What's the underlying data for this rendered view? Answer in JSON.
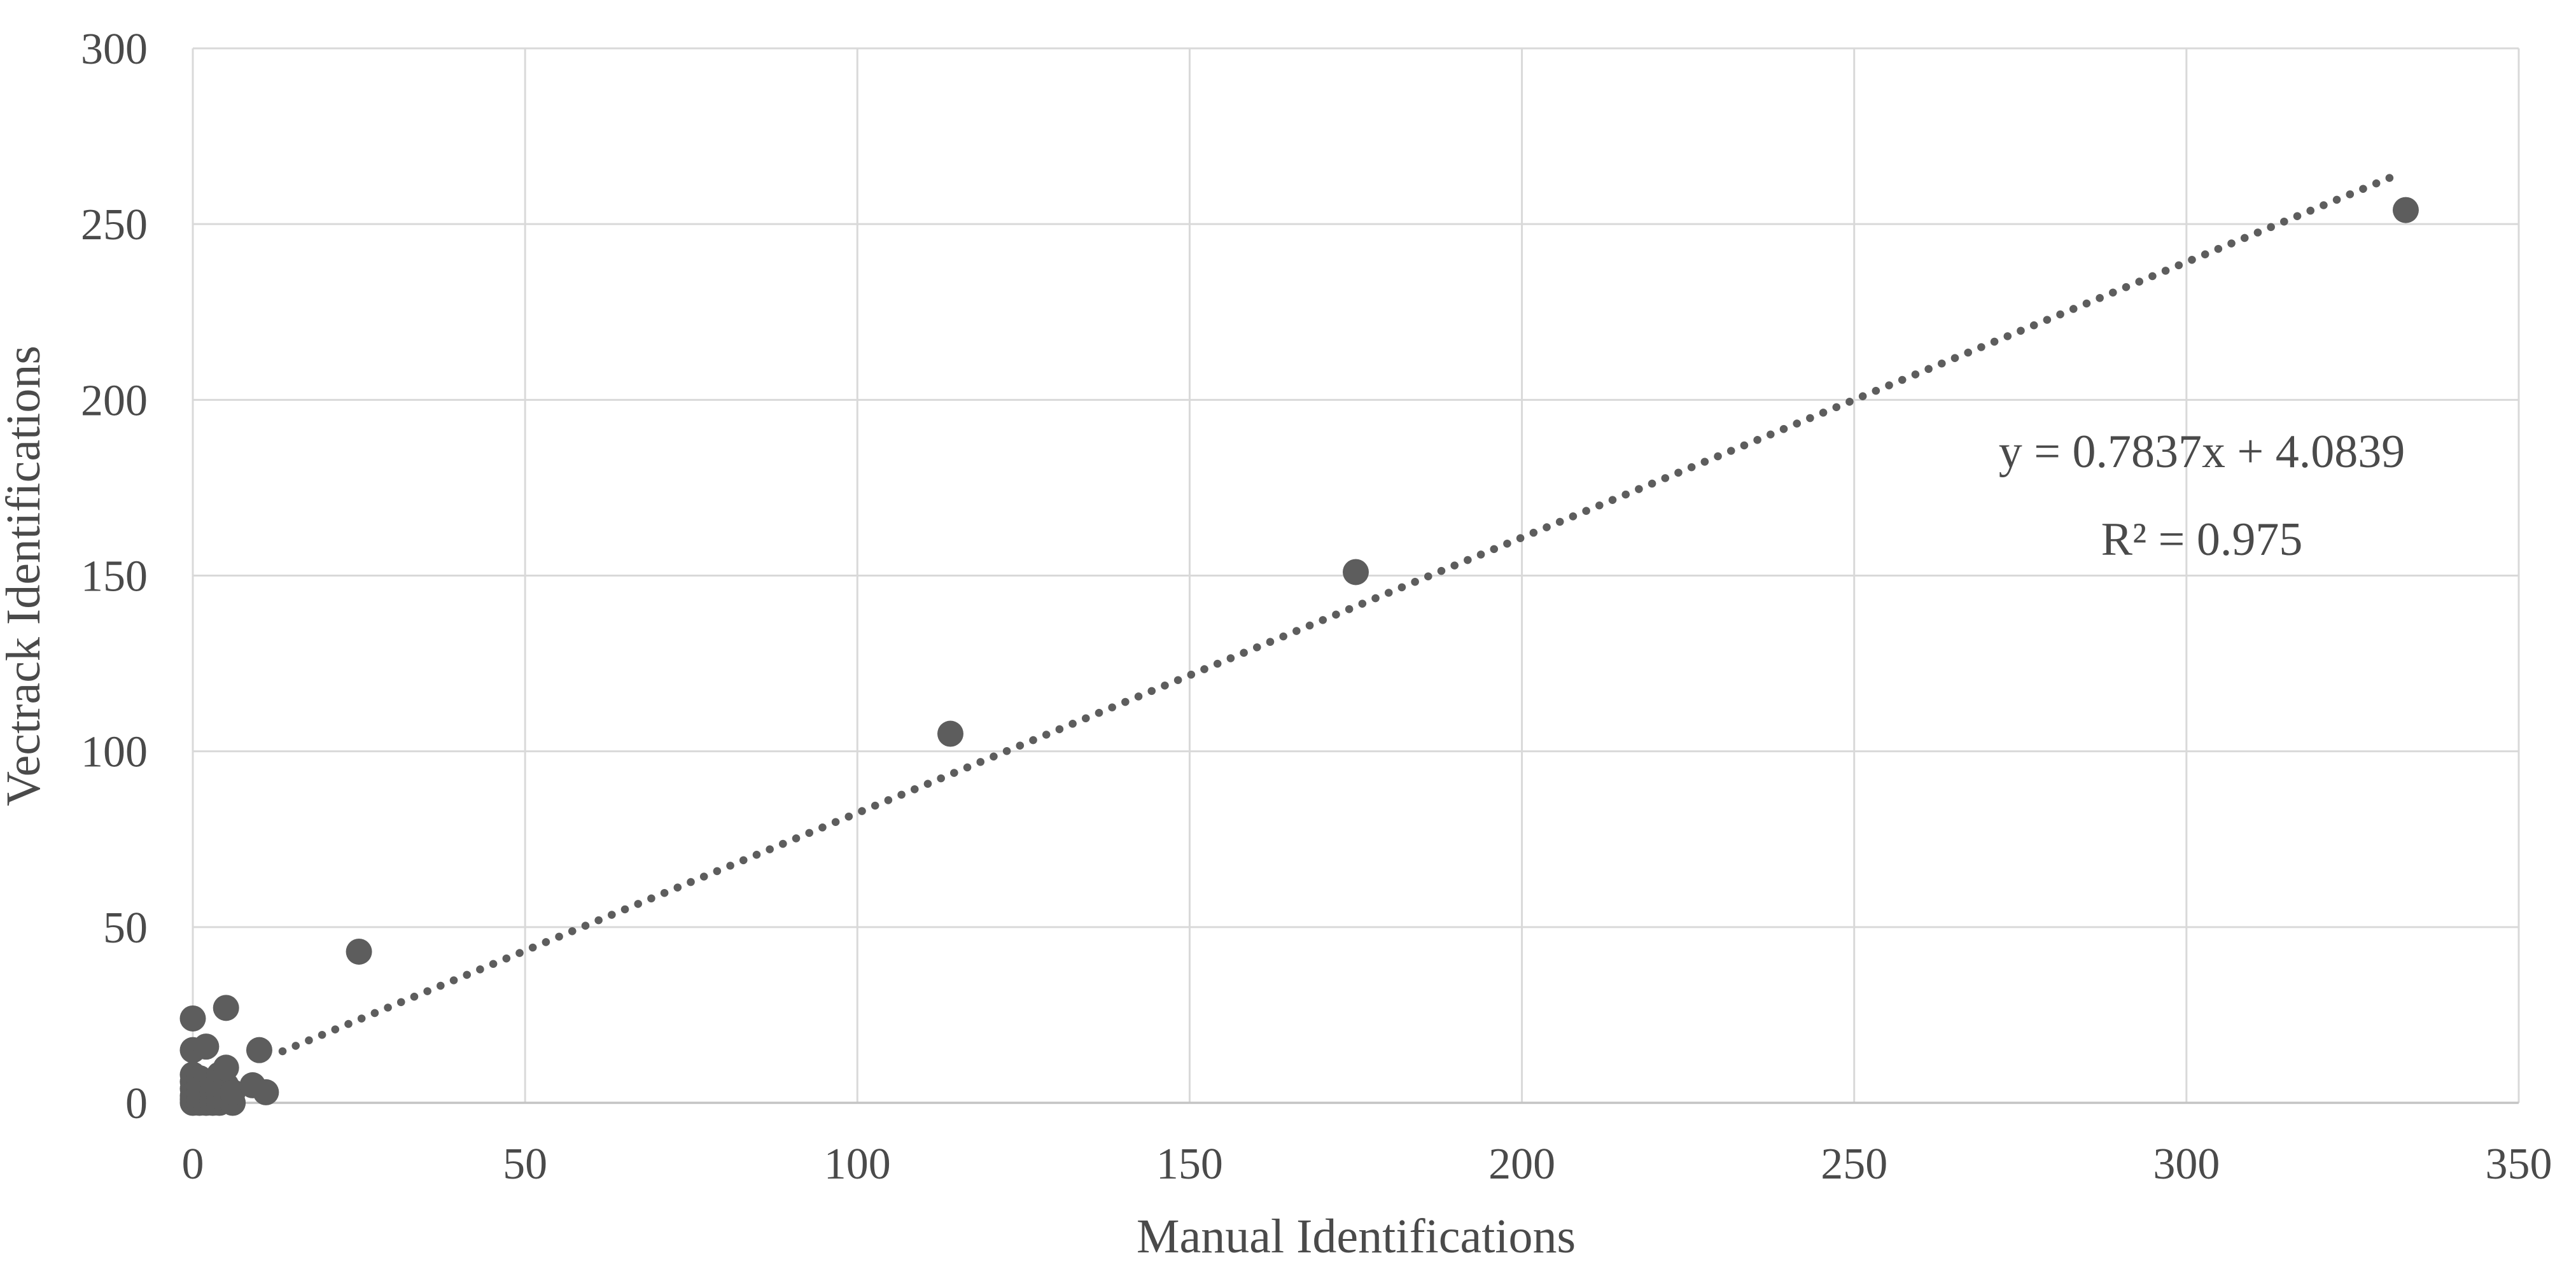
{
  "chart_data": {
    "type": "scatter",
    "title": "",
    "xlabel": "Manual Identifications",
    "ylabel": "Vectrack Identifications",
    "xlim": [
      0,
      350
    ],
    "ylim": [
      0,
      300
    ],
    "xticks": [
      0,
      50,
      100,
      150,
      200,
      250,
      300,
      350
    ],
    "yticks": [
      0,
      50,
      100,
      150,
      200,
      250,
      300
    ],
    "grid": true,
    "legend": "none",
    "points": [
      [
        0,
        0
      ],
      [
        0,
        1
      ],
      [
        0,
        2
      ],
      [
        0,
        4
      ],
      [
        0,
        6
      ],
      [
        0,
        8
      ],
      [
        1,
        0
      ],
      [
        1,
        1
      ],
      [
        1,
        3
      ],
      [
        1,
        5
      ],
      [
        1,
        7
      ],
      [
        2,
        0
      ],
      [
        2,
        2
      ],
      [
        2,
        4
      ],
      [
        2,
        6
      ],
      [
        3,
        0
      ],
      [
        3,
        1
      ],
      [
        3,
        3
      ],
      [
        3,
        6
      ],
      [
        4,
        0
      ],
      [
        4,
        2
      ],
      [
        4,
        8
      ],
      [
        5,
        1
      ],
      [
        5,
        5
      ],
      [
        6,
        0
      ],
      [
        6,
        3
      ],
      [
        0,
        15
      ],
      [
        2,
        16
      ],
      [
        0,
        24
      ],
      [
        5,
        27
      ],
      [
        5,
        10
      ],
      [
        10,
        15
      ],
      [
        9,
        5
      ],
      [
        11,
        3
      ],
      [
        25,
        43
      ],
      [
        114,
        105
      ],
      [
        175,
        151
      ],
      [
        333,
        254
      ]
    ],
    "trendline": {
      "style": "dotted",
      "slope": 0.7837,
      "intercept": 4.0839,
      "x_start": 13.5,
      "x_end": 332,
      "equation_label": "y = 0.7837x + 4.0839",
      "r2_label": "R² = 0.975"
    },
    "colors": {
      "marker": "#5d5d5d",
      "trendline": "#5d5d5d",
      "gridline": "#d9d9d9",
      "axis_line": "#c4c4c4",
      "text": "#4a4a4a",
      "background": "#ffffff"
    },
    "layout": {
      "plot_left": 303,
      "plot_right": 3958,
      "plot_top": 76,
      "plot_bottom": 1733,
      "marker_radius": 20.5,
      "equation_x": 3460,
      "equation_line1_y": 734,
      "equation_line2_y": 872
    }
  }
}
